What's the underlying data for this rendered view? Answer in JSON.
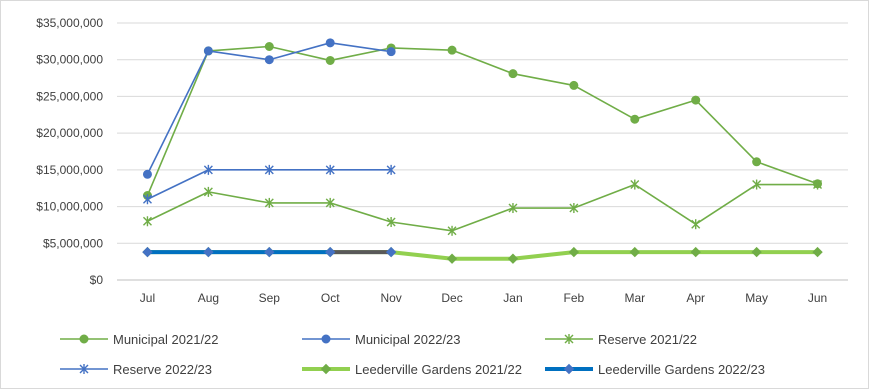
{
  "chart_data": {
    "type": "line",
    "title": "",
    "xlabel": "",
    "ylabel": "",
    "categories": [
      "Jul",
      "Aug",
      "Sep",
      "Oct",
      "Nov",
      "Dec",
      "Jan",
      "Feb",
      "Mar",
      "Apr",
      "May",
      "Jun"
    ],
    "y_ticks": [
      "$0",
      "$5,000,000",
      "$10,000,000",
      "$15,000,000",
      "$20,000,000",
      "$25,000,000",
      "$30,000,000",
      "$35,000,000"
    ],
    "ylim": [
      0,
      35000000
    ],
    "grid": "horizontal",
    "legend_position": "bottom",
    "series": [
      {
        "name": "Municipal  2021/22",
        "color": "#70ad47",
        "marker": "circle",
        "line_width": "thin",
        "values": [
          11500000,
          31200000,
          31800000,
          29900000,
          31600000,
          31300000,
          28100000,
          26500000,
          21900000,
          24500000,
          16100000,
          13100000
        ]
      },
      {
        "name": "Municipal  2022/23",
        "color": "#4472c4",
        "marker": "circle",
        "line_width": "thin",
        "values": [
          14400000,
          31200000,
          30000000,
          32300000,
          31100000,
          null,
          null,
          null,
          null,
          null,
          null,
          null
        ]
      },
      {
        "name": "Reserve  2021/22",
        "color": "#70ad47",
        "marker": "star",
        "line_width": "thin",
        "values": [
          8000000,
          12000000,
          10500000,
          10500000,
          7900000,
          6700000,
          9800000,
          9800000,
          13000000,
          7600000,
          13000000,
          13000000
        ]
      },
      {
        "name": "Reserve  2022/23",
        "color": "#4472c4",
        "marker": "star",
        "line_width": "thin",
        "values": [
          11000000,
          15000000,
          15000000,
          15000000,
          15000000,
          null,
          null,
          null,
          null,
          null,
          null,
          null
        ]
      },
      {
        "name": "Leederville Gardens  2021/22",
        "color": "#92d050",
        "marker": "diamond",
        "line_width": "thick",
        "values": [
          3800000,
          3800000,
          3800000,
          3800000,
          3800000,
          2900000,
          2900000,
          3800000,
          3800000,
          3800000,
          3800000,
          3800000
        ]
      },
      {
        "name": "Leederville Gardens  2022/23",
        "color": "#0070c0",
        "marker": "diamond",
        "line_width": "thick",
        "segment_colors": [
          "#0070c0",
          "#0070c0",
          "#0070c0",
          "#595959"
        ],
        "values": [
          3800000,
          3800000,
          3800000,
          3800000,
          3800000,
          null,
          null,
          null,
          null,
          null,
          null,
          null
        ]
      }
    ]
  }
}
